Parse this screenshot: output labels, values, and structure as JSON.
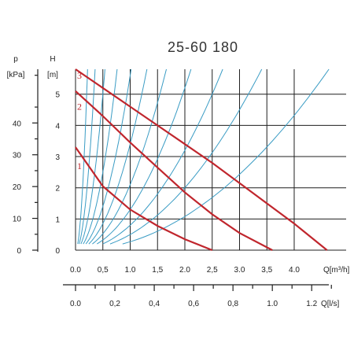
{
  "chart_data": {
    "type": "line",
    "title": "25-60 180",
    "y_axis_H": {
      "label": "H",
      "unit": "[m]",
      "ticks": [
        0,
        1,
        2,
        3,
        4,
        5
      ],
      "ylim": [
        0,
        5.8
      ]
    },
    "y_axis_p": {
      "label": "p",
      "unit": "[kPa]",
      "ticks": [
        0,
        10,
        20,
        30,
        40
      ],
      "ylim": [
        0,
        56.9
      ]
    },
    "x_axis_Q_m3h": {
      "label": "Q[m³/h]",
      "ticks": [
        "0.0",
        "0,5",
        "1.0",
        "1,5",
        "2.0",
        "2,5",
        "3.0",
        "3,5",
        "4.0"
      ],
      "tick_values": [
        0,
        0.5,
        1,
        1.5,
        2,
        2.5,
        3,
        3.5,
        4
      ],
      "xlim": [
        0,
        4.95
      ]
    },
    "x_axis_Q_ls": {
      "label": "Q[l/s]",
      "ticks": [
        "0.0",
        "0,2",
        "0,4",
        "0,6",
        "0,8",
        "1.0",
        "1.2"
      ],
      "tick_values": [
        0,
        0.2,
        0.4,
        0.6,
        0.8,
        1.0,
        1.2
      ],
      "xlim": [
        0,
        1.375
      ]
    },
    "series": [
      {
        "name": "1",
        "x": [
          0,
          0.5,
          1.0,
          1.5,
          2.0,
          2.5
        ],
        "values": [
          3.3,
          2.05,
          1.3,
          0.78,
          0.35,
          0.0
        ]
      },
      {
        "name": "2",
        "x": [
          0,
          0.5,
          1.0,
          1.5,
          2.0,
          2.5,
          3.0,
          3.6
        ],
        "values": [
          5.1,
          4.3,
          3.45,
          2.65,
          1.85,
          1.15,
          0.55,
          0.0
        ]
      },
      {
        "name": "3",
        "x": [
          0,
          0.5,
          1.0,
          1.5,
          2.0,
          2.5,
          3.0,
          3.5,
          4.0,
          4.6
        ],
        "values": [
          5.9,
          5.2,
          4.6,
          4.0,
          3.4,
          2.8,
          2.15,
          1.5,
          0.85,
          0.0
        ]
      }
    ],
    "system_curve_coefficients": [
      120,
      45,
      20,
      10,
      5.6,
      3.4,
      2.1,
      1.3,
      0.8,
      0.5,
      0.27
    ],
    "grid": true,
    "colors": {
      "pump_curves": "#c0262d",
      "system_curves": "#3a9cc4",
      "axes": "#1f1f1f"
    }
  }
}
